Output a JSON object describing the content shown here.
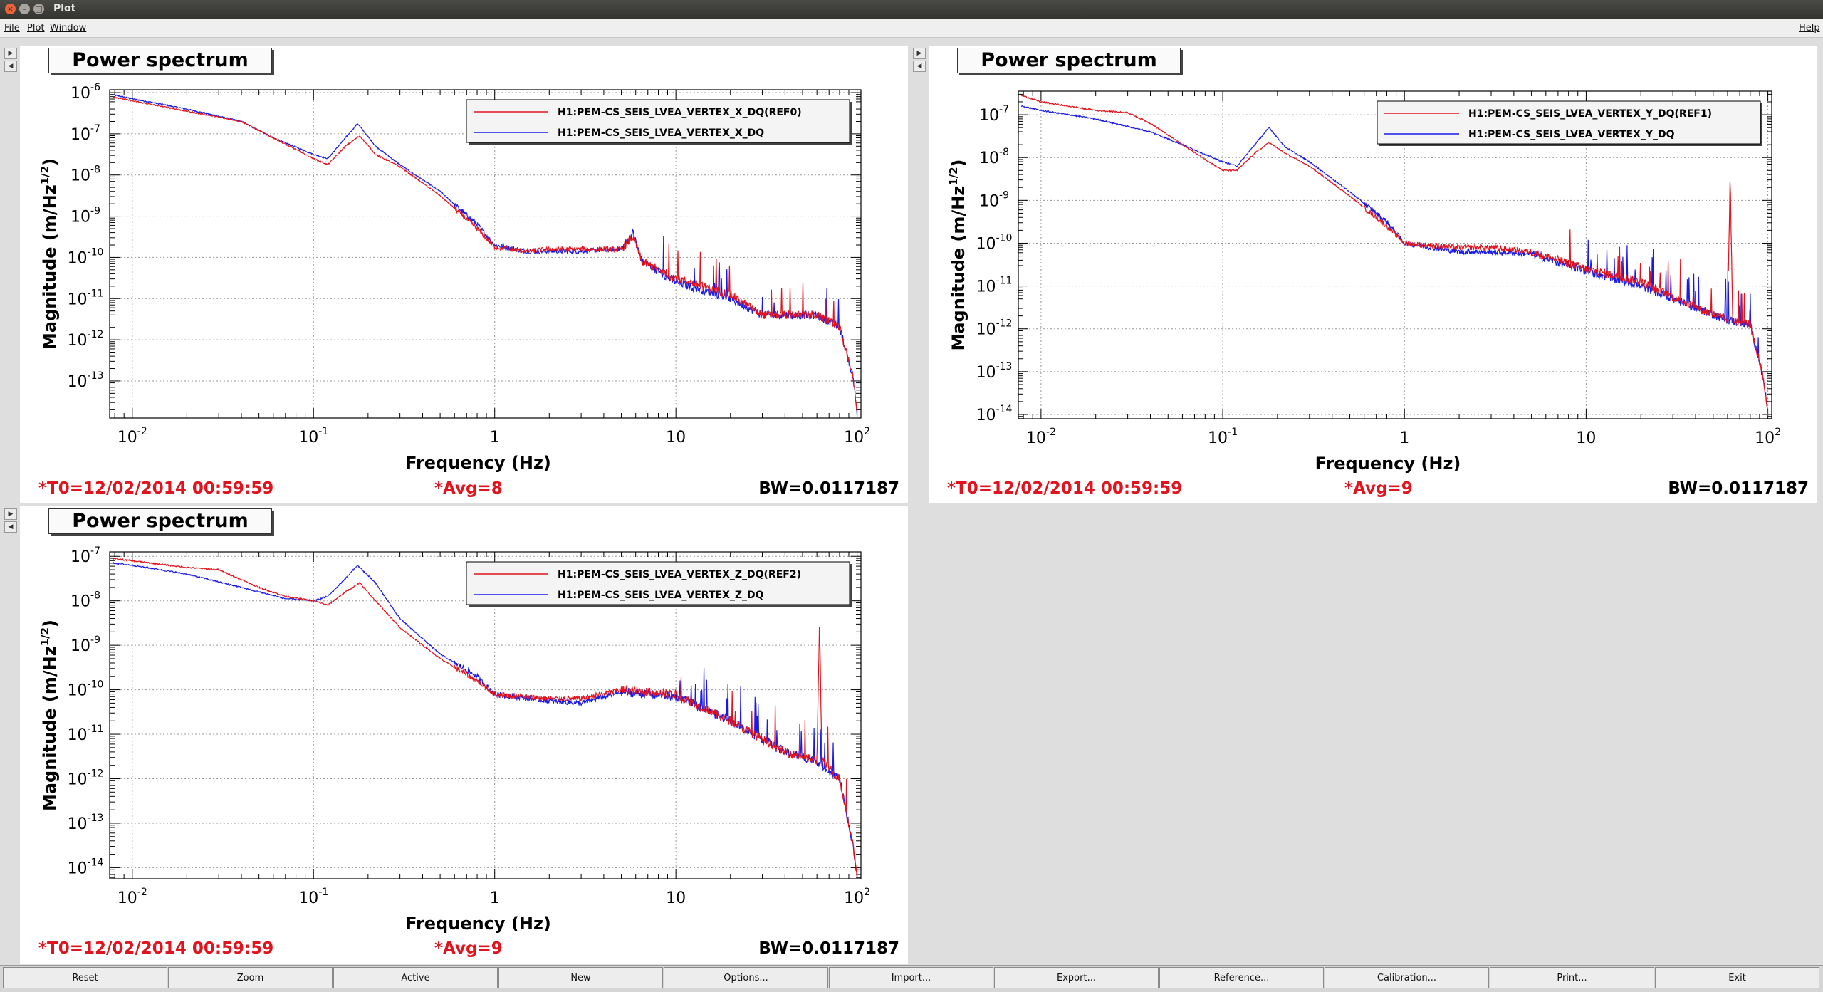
{
  "window": {
    "title": "Plot",
    "close_icon": "×",
    "min_icon": "–",
    "max_icon": "□"
  },
  "menu": {
    "file": "File",
    "plot": "Plot",
    "window": "Window",
    "help": "Help"
  },
  "arrows": {
    "right": "▶",
    "left": "◀"
  },
  "buttons": [
    "Reset",
    "Zoom",
    "Active",
    "New",
    "Options...",
    "Import...",
    "Export...",
    "Reference...",
    "Calibration...",
    "Print...",
    "Exit"
  ],
  "colors": {
    "ref": "#e0141e",
    "live": "#1a1ae6"
  },
  "panels": [
    {
      "title": "Power spectrum",
      "t0": "*T0=12/02/2014 00:59:59",
      "avg": "*Avg=8",
      "bw": "BW=0.0117187",
      "chart_data": {
        "type": "line",
        "xlabel": "Frequency (Hz)",
        "ylabel": "Magnitude (m/Hz^1/2)",
        "log_x": true,
        "log_y": true,
        "xlim": [
          0.0075,
          105
        ],
        "ylim_exp": [
          -13.9,
          -5.93
        ],
        "x_ticks": [
          {
            "label": "10",
            "exp": "-2",
            "v": 0.01
          },
          {
            "label": "10",
            "exp": "-1",
            "v": 0.1
          },
          {
            "label": "1",
            "exp": "",
            "v": 1
          },
          {
            "label": "10",
            "exp": "",
            "v": 10
          },
          {
            "label": "10",
            "exp": "2",
            "v": 100
          }
        ],
        "y_ticks": [
          {
            "label": "10",
            "exp": "-6",
            "v": -6
          },
          {
            "label": "10",
            "exp": "-7",
            "v": -7
          },
          {
            "label": "10",
            "exp": "-8",
            "v": -8
          },
          {
            "label": "10",
            "exp": "-9",
            "v": -9
          },
          {
            "label": "10",
            "exp": "-10",
            "v": -10
          },
          {
            "label": "10",
            "exp": "-11",
            "v": -11
          },
          {
            "label": "10",
            "exp": "-12",
            "v": -12
          },
          {
            "label": "10",
            "exp": "-13",
            "v": -13
          }
        ],
        "grid": true,
        "legend_position": "top-right",
        "series": [
          {
            "name": "H1:PEM-CS_SEIS_LVEA_VERTEX_X_DQ(REF0)",
            "color": "#e0141e",
            "points": [
              [
                0.0078,
                -6.1
              ],
              [
                0.01,
                -6.2
              ],
              [
                0.02,
                -6.45
              ],
              [
                0.04,
                -6.7
              ],
              [
                0.06,
                -7.1
              ],
              [
                0.1,
                -7.6
              ],
              [
                0.12,
                -7.75
              ],
              [
                0.15,
                -7.3
              ],
              [
                0.18,
                -7.05
              ],
              [
                0.22,
                -7.5
              ],
              [
                0.3,
                -7.8
              ],
              [
                0.5,
                -8.5
              ],
              [
                0.8,
                -9.3
              ],
              [
                1,
                -9.75
              ],
              [
                1.5,
                -9.85
              ],
              [
                2,
                -9.8
              ],
              [
                3,
                -9.8
              ],
              [
                5,
                -9.8
              ],
              [
                5.8,
                -9.5
              ],
              [
                6.5,
                -10.1
              ],
              [
                10,
                -10.5
              ],
              [
                20,
                -10.9
              ],
              [
                30,
                -11.4
              ],
              [
                60,
                -11.4
              ],
              [
                80,
                -11.7
              ],
              [
                95,
                -12.9
              ],
              [
                100,
                -13.8
              ]
            ]
          },
          {
            "name": "H1:PEM-CS_SEIS_LVEA_VERTEX_X_DQ",
            "color": "#1a1ae6",
            "points": [
              [
                0.0078,
                -6.05
              ],
              [
                0.01,
                -6.15
              ],
              [
                0.02,
                -6.4
              ],
              [
                0.04,
                -6.7
              ],
              [
                0.06,
                -7.1
              ],
              [
                0.1,
                -7.5
              ],
              [
                0.12,
                -7.6
              ],
              [
                0.15,
                -7.1
              ],
              [
                0.175,
                -6.75
              ],
              [
                0.22,
                -7.3
              ],
              [
                0.3,
                -7.75
              ],
              [
                0.5,
                -8.4
              ],
              [
                0.8,
                -9.2
              ],
              [
                1,
                -9.7
              ],
              [
                1.5,
                -9.85
              ],
              [
                2,
                -9.85
              ],
              [
                3,
                -9.85
              ],
              [
                5,
                -9.8
              ],
              [
                5.8,
                -9.4
              ],
              [
                6.5,
                -10.1
              ],
              [
                10,
                -10.6
              ],
              [
                20,
                -11.0
              ],
              [
                30,
                -11.4
              ],
              [
                60,
                -11.4
              ],
              [
                80,
                -11.7
              ],
              [
                95,
                -12.9
              ],
              [
                100,
                -13.8
              ]
            ]
          }
        ]
      }
    },
    {
      "title": "Power spectrum",
      "t0": "*T0=12/02/2014 00:59:59",
      "avg": "*Avg=9",
      "bw": "BW=0.0117187",
      "chart_data": {
        "type": "line",
        "xlabel": "Frequency (Hz)",
        "ylabel": "Magnitude (m/Hz^1/2)",
        "log_x": true,
        "log_y": true,
        "xlim": [
          0.0075,
          105
        ],
        "ylim_exp": [
          -14.1,
          -6.45
        ],
        "x_ticks": [
          {
            "label": "10",
            "exp": "-2",
            "v": 0.01
          },
          {
            "label": "10",
            "exp": "-1",
            "v": 0.1
          },
          {
            "label": "1",
            "exp": "",
            "v": 1
          },
          {
            "label": "10",
            "exp": "",
            "v": 10
          },
          {
            "label": "10",
            "exp": "2",
            "v": 100
          }
        ],
        "y_ticks": [
          {
            "label": "10",
            "exp": "-7",
            "v": -7
          },
          {
            "label": "10",
            "exp": "-8",
            "v": -8
          },
          {
            "label": "10",
            "exp": "-9",
            "v": -9
          },
          {
            "label": "10",
            "exp": "-10",
            "v": -10
          },
          {
            "label": "10",
            "exp": "-11",
            "v": -11
          },
          {
            "label": "10",
            "exp": "-12",
            "v": -12
          },
          {
            "label": "10",
            "exp": "-13",
            "v": -13
          },
          {
            "label": "10",
            "exp": "-14",
            "v": -14
          }
        ],
        "grid": true,
        "legend_position": "top-right",
        "series": [
          {
            "name": "H1:PEM-CS_SEIS_LVEA_VERTEX_Y_DQ(REF1)",
            "color": "#e0141e",
            "points": [
              [
                0.0078,
                -6.55
              ],
              [
                0.01,
                -6.7
              ],
              [
                0.02,
                -6.9
              ],
              [
                0.03,
                -6.95
              ],
              [
                0.04,
                -7.2
              ],
              [
                0.06,
                -7.7
              ],
              [
                0.1,
                -8.3
              ],
              [
                0.12,
                -8.3
              ],
              [
                0.15,
                -7.9
              ],
              [
                0.18,
                -7.65
              ],
              [
                0.22,
                -7.9
              ],
              [
                0.3,
                -8.2
              ],
              [
                0.5,
                -8.9
              ],
              [
                0.8,
                -9.6
              ],
              [
                1,
                -10.0
              ],
              [
                2,
                -10.1
              ],
              [
                3,
                -10.1
              ],
              [
                5,
                -10.2
              ],
              [
                10,
                -10.6
              ],
              [
                20,
                -10.9
              ],
              [
                40,
                -11.5
              ],
              [
                60,
                -11.8
              ],
              [
                62,
                -8.4
              ],
              [
                64,
                -11.8
              ],
              [
                80,
                -11.9
              ],
              [
                95,
                -13.2
              ],
              [
                100,
                -14.0
              ]
            ]
          },
          {
            "name": "H1:PEM-CS_SEIS_LVEA_VERTEX_Y_DQ",
            "color": "#1a1ae6",
            "points": [
              [
                0.0078,
                -6.8
              ],
              [
                0.01,
                -6.9
              ],
              [
                0.02,
                -7.1
              ],
              [
                0.04,
                -7.4
              ],
              [
                0.06,
                -7.7
              ],
              [
                0.1,
                -8.1
              ],
              [
                0.12,
                -8.2
              ],
              [
                0.15,
                -7.7
              ],
              [
                0.18,
                -7.3
              ],
              [
                0.22,
                -7.75
              ],
              [
                0.3,
                -8.1
              ],
              [
                0.5,
                -8.8
              ],
              [
                0.8,
                -9.5
              ],
              [
                1,
                -10.0
              ],
              [
                2,
                -10.2
              ],
              [
                3,
                -10.2
              ],
              [
                5,
                -10.25
              ],
              [
                10,
                -10.65
              ],
              [
                20,
                -11.0
              ],
              [
                40,
                -11.5
              ],
              [
                60,
                -11.8
              ],
              [
                80,
                -11.9
              ],
              [
                95,
                -13.2
              ],
              [
                100,
                -14.0
              ]
            ]
          }
        ]
      }
    },
    {
      "title": "Power spectrum",
      "t0": "*T0=12/02/2014 00:59:59",
      "avg": "*Avg=9",
      "bw": "BW=0.0117187",
      "chart_data": {
        "type": "line",
        "xlabel": "Frequency (Hz)",
        "ylabel": "Magnitude (m/Hz^1/2)",
        "log_x": true,
        "log_y": true,
        "xlim": [
          0.0075,
          105
        ],
        "ylim_exp": [
          -14.25,
          -6.9
        ],
        "x_ticks": [
          {
            "label": "10",
            "exp": "-2",
            "v": 0.01
          },
          {
            "label": "10",
            "exp": "-1",
            "v": 0.1
          },
          {
            "label": "1",
            "exp": "",
            "v": 1
          },
          {
            "label": "10",
            "exp": "",
            "v": 10
          },
          {
            "label": "10",
            "exp": "2",
            "v": 100
          }
        ],
        "y_ticks": [
          {
            "label": "10",
            "exp": "-7",
            "v": -7
          },
          {
            "label": "10",
            "exp": "-8",
            "v": -8
          },
          {
            "label": "10",
            "exp": "-9",
            "v": -9
          },
          {
            "label": "10",
            "exp": "-10",
            "v": -10
          },
          {
            "label": "10",
            "exp": "-11",
            "v": -11
          },
          {
            "label": "10",
            "exp": "-12",
            "v": -12
          },
          {
            "label": "10",
            "exp": "-13",
            "v": -13
          },
          {
            "label": "10",
            "exp": "-14",
            "v": -14
          }
        ],
        "grid": true,
        "legend_position": "top-right",
        "series": [
          {
            "name": "H1:PEM-CS_SEIS_LVEA_VERTEX_Z_DQ(REF2)",
            "color": "#e0141e",
            "points": [
              [
                0.0078,
                -7.05
              ],
              [
                0.01,
                -7.1
              ],
              [
                0.02,
                -7.25
              ],
              [
                0.03,
                -7.3
              ],
              [
                0.05,
                -7.7
              ],
              [
                0.07,
                -7.9
              ],
              [
                0.1,
                -8.0
              ],
              [
                0.12,
                -8.1
              ],
              [
                0.15,
                -7.8
              ],
              [
                0.18,
                -7.6
              ],
              [
                0.22,
                -8.0
              ],
              [
                0.3,
                -8.6
              ],
              [
                0.5,
                -9.3
              ],
              [
                0.8,
                -9.8
              ],
              [
                1,
                -10.1
              ],
              [
                2,
                -10.2
              ],
              [
                3,
                -10.2
              ],
              [
                5,
                -10.0
              ],
              [
                10,
                -10.1
              ],
              [
                20,
                -10.7
              ],
              [
                40,
                -11.4
              ],
              [
                60,
                -11.6
              ],
              [
                62,
                -8.4
              ],
              [
                64,
                -11.6
              ],
              [
                80,
                -12.0
              ],
              [
                95,
                -13.5
              ],
              [
                100,
                -14.2
              ]
            ]
          },
          {
            "name": "H1:PEM-CS_SEIS_LVEA_VERTEX_Z_DQ",
            "color": "#1a1ae6",
            "points": [
              [
                0.0078,
                -7.15
              ],
              [
                0.01,
                -7.2
              ],
              [
                0.02,
                -7.4
              ],
              [
                0.04,
                -7.7
              ],
              [
                0.07,
                -7.95
              ],
              [
                0.1,
                -8.0
              ],
              [
                0.12,
                -7.9
              ],
              [
                0.15,
                -7.5
              ],
              [
                0.175,
                -7.2
              ],
              [
                0.22,
                -7.6
              ],
              [
                0.3,
                -8.4
              ],
              [
                0.5,
                -9.2
              ],
              [
                0.8,
                -9.7
              ],
              [
                1,
                -10.1
              ],
              [
                2,
                -10.25
              ],
              [
                3,
                -10.3
              ],
              [
                5,
                -10.05
              ],
              [
                10,
                -10.15
              ],
              [
                20,
                -10.7
              ],
              [
                40,
                -11.4
              ],
              [
                60,
                -11.6
              ],
              [
                80,
                -12.0
              ],
              [
                95,
                -13.5
              ],
              [
                100,
                -14.2
              ]
            ]
          }
        ]
      }
    }
  ]
}
